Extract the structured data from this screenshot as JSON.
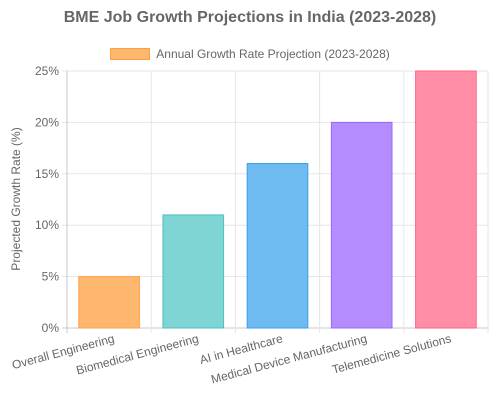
{
  "chart_data": {
    "type": "bar",
    "title": "BME Job Growth Projections in India (2023-2028)",
    "ylabel": "Projected Growth Rate (%)",
    "xlabel": "",
    "ylim": [
      0,
      25
    ],
    "y_ticks": [
      "0%",
      "5%",
      "10%",
      "15%",
      "20%",
      "25%"
    ],
    "categories": [
      "Overall Engineering",
      "Biomedical Engineering",
      "AI in Healthcare",
      "Medical Device Manufacturing",
      "Telemedicine Solutions"
    ],
    "series": [
      {
        "name": "Annual Growth Rate Projection (2023-2028)",
        "values": [
          5,
          11,
          16,
          20,
          25
        ]
      }
    ],
    "bar_colors": [
      {
        "fill": "#ffb66f",
        "stroke": "#ffa040"
      },
      {
        "fill": "#7fd4d4",
        "stroke": "#4bc0c0"
      },
      {
        "fill": "#6fbaf0",
        "stroke": "#36a2eb"
      },
      {
        "fill": "#b48cff",
        "stroke": "#9966ff"
      },
      {
        "fill": "#ff8ea6",
        "stroke": "#ff6384"
      }
    ],
    "legend_position": "top",
    "grid": true
  }
}
